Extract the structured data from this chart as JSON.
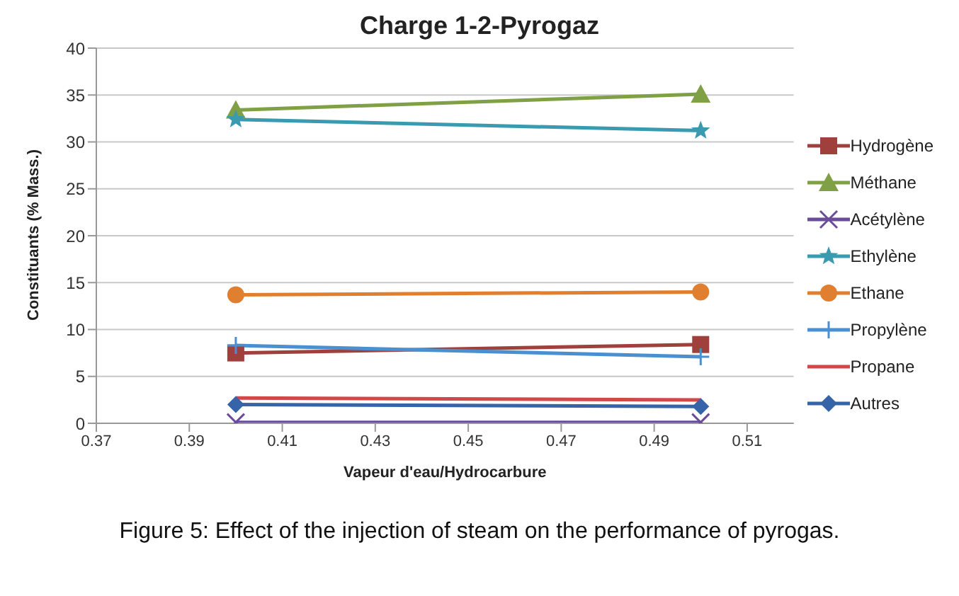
{
  "chart_data": {
    "type": "line",
    "title": "Charge 1-2-Pyrogaz",
    "xlabel": "Vapeur d'eau/Hydrocarbure",
    "ylabel": "Constituants (% Mass.)",
    "annotations": [
      "Figure 5: Effect of the injection of steam on the performance of pyrogas."
    ],
    "x": [
      0.4,
      0.5
    ],
    "series": [
      {
        "name": "Hydrogène",
        "color": "#a0403d",
        "values": [
          7.5,
          8.4
        ],
        "marker": "square"
      },
      {
        "name": "Méthane",
        "color": "#7fa045",
        "values": [
          33.4,
          35.1
        ],
        "marker": "triangle"
      },
      {
        "name": "Acétylène",
        "color": "#6b4c9a",
        "values": [
          0.1,
          0.1
        ],
        "marker": "cross"
      },
      {
        "name": "Ethylène",
        "color": "#3a9bb0",
        "values": [
          32.4,
          31.2
        ],
        "marker": "star"
      },
      {
        "name": "Ethane",
        "color": "#e07f30",
        "values": [
          13.7,
          14.0
        ],
        "marker": "circle"
      },
      {
        "name": "Propylène",
        "color": "#4a90d0",
        "values": [
          8.3,
          7.1
        ],
        "marker": "plus"
      },
      {
        "name": "Propane",
        "color": "#d04848",
        "values": [
          2.7,
          2.5
        ],
        "marker": "none"
      },
      {
        "name": "Autres",
        "color": "#3565a8",
        "values": [
          2.0,
          1.8
        ],
        "marker": "diamond"
      }
    ],
    "xlim": [
      0.37,
      0.52
    ],
    "xticks": [
      {
        "value": 0.37,
        "label": "0.37"
      },
      {
        "value": 0.39,
        "label": "0.39"
      },
      {
        "value": 0.41,
        "label": "0.41"
      },
      {
        "value": 0.43,
        "label": "0.43"
      },
      {
        "value": 0.45,
        "label": "0.45"
      },
      {
        "value": 0.47,
        "label": "0.47"
      },
      {
        "value": 0.49,
        "label": "0.49"
      },
      {
        "value": 0.51,
        "label": "0.51"
      }
    ],
    "ylim": [
      0,
      40
    ],
    "yticks": [
      0,
      5,
      10,
      15,
      20,
      25,
      30,
      35,
      40
    ],
    "grid": "y",
    "legend": "right",
    "line_style": "solid"
  }
}
